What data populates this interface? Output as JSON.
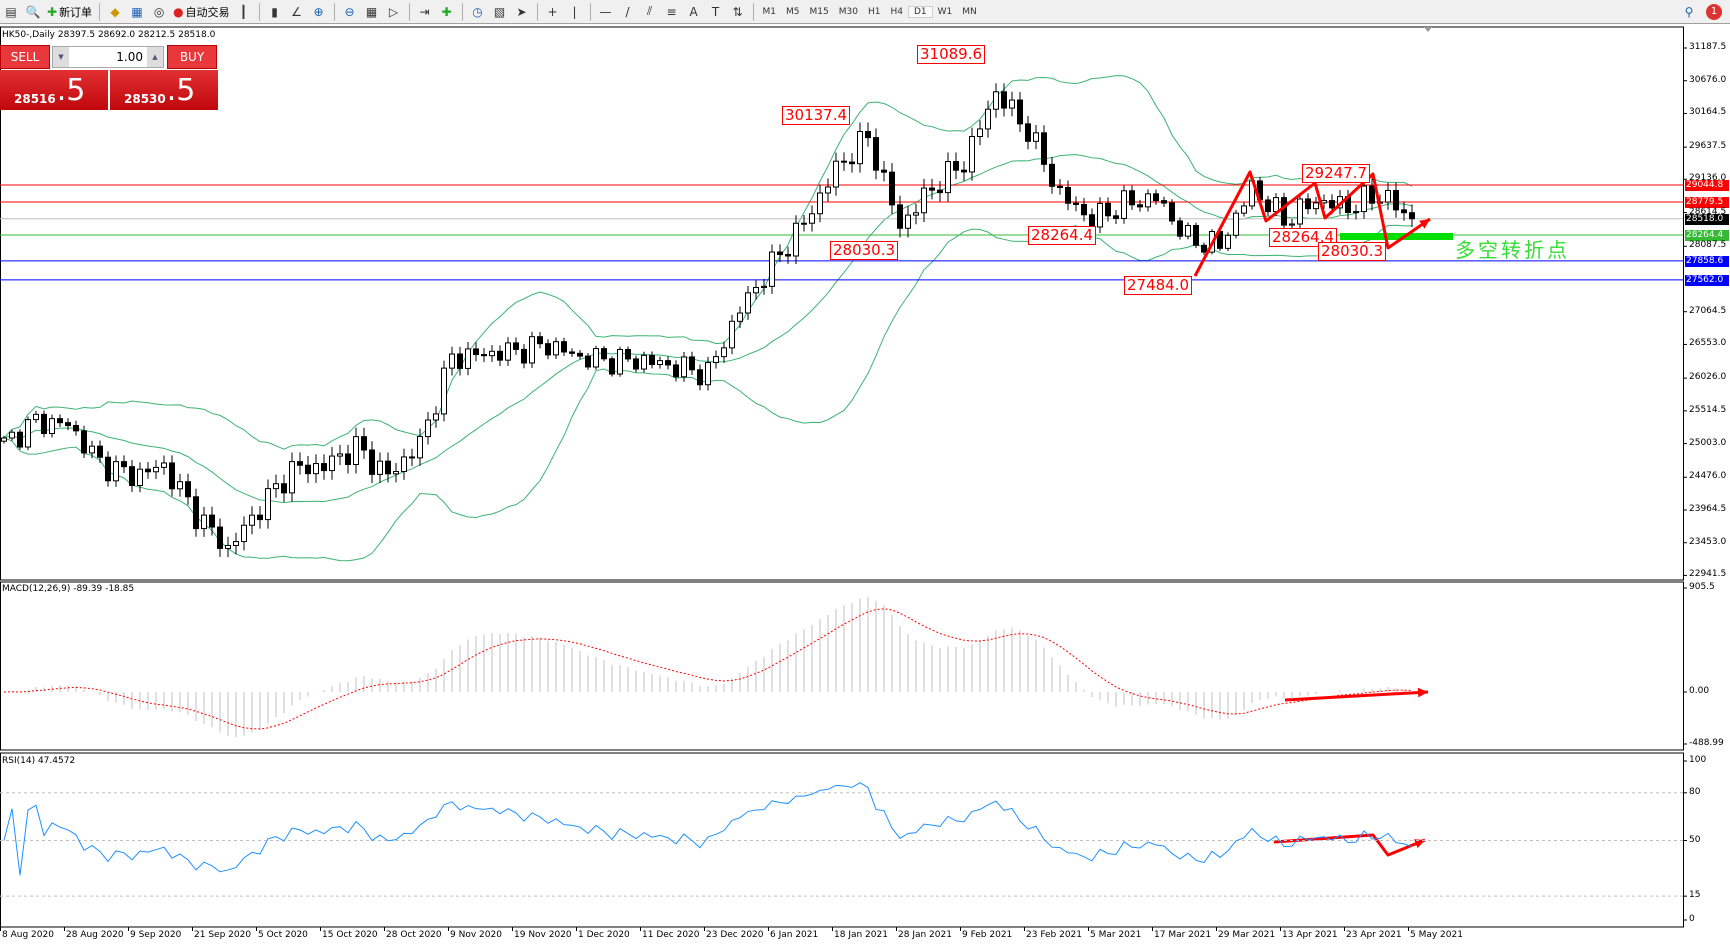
{
  "toolbar": {
    "new_order": "新订单",
    "auto_trading": "自动交易",
    "icons": [
      "new-chart-icon",
      "profiles-icon",
      "new-order-icon",
      "metaeditor-icon",
      "navigator-icon",
      "signals-icon",
      "auto-trading-icon",
      "bar-chart-icon",
      "candlestick-icon",
      "line-chart-icon",
      "zoom-in-icon",
      "zoom-out-icon",
      "tile-windows-icon",
      "auto-scroll-icon",
      "chart-shift-icon",
      "indicators-icon",
      "periods-icon",
      "templates-icon",
      "cursor-icon",
      "crosshair-icon",
      "vertical-line-icon",
      "horizontal-line-icon",
      "trendline-icon",
      "equidistant-channel-icon",
      "fibonacci-icon",
      "text-icon",
      "text-label-icon",
      "arrows-icon"
    ],
    "timeframes": [
      "M1",
      "M5",
      "M15",
      "M30",
      "H1",
      "H4",
      "D1",
      "W1",
      "MN"
    ],
    "active_timeframe": "D1",
    "notification_count": "1"
  },
  "chart": {
    "header": "HK50-,Daily  28397.5 28692.0 28212.5 28518.0",
    "trade_panel": {
      "sell": "SELL",
      "buy": "BUY",
      "lot": "1.00",
      "bid_main": "28516",
      "bid_frac": ".5",
      "ask_main": "28530",
      "ask_frac": ".5"
    },
    "price_axis": [
      "31187.5",
      "30676.0",
      "30164.5",
      "29637.5",
      "29136.0",
      "28614.5",
      "28087.5",
      "27064.5",
      "26553.0",
      "26026.0",
      "25514.5",
      "25003.0",
      "24476.0",
      "23964.5",
      "23453.0",
      "22941.5"
    ],
    "levels": [
      {
        "price": "29044.8",
        "color": "#ff0000"
      },
      {
        "price": "28779.5",
        "color": "#ff0000"
      },
      {
        "price": "28518.0",
        "color": "#000000",
        "line": "#c0c0c0"
      },
      {
        "price": "28264.4",
        "color": "#33bb33"
      },
      {
        "price": "27858.6",
        "color": "#0000ff"
      },
      {
        "price": "27562.0",
        "color": "#0000ff"
      }
    ],
    "annotations": [
      "31089.6",
      "30137.4",
      "28030.3",
      "28264.4",
      "27484.0",
      "29247.7",
      "28264.4",
      "28030.3"
    ],
    "zone_text": "多空转折点",
    "dates": [
      "8 Aug 2020",
      "28 Aug 2020",
      "9 Sep 2020",
      "21 Sep 2020",
      "5 Oct 2020",
      "15 Oct 2020",
      "28 Oct 2020",
      "9 Nov 2020",
      "19 Nov 2020",
      "1 Dec 2020",
      "11 Dec 2020",
      "23 Dec 2020",
      "6 Jan 2021",
      "18 Jan 2021",
      "28 Jan 2021",
      "9 Feb 2021",
      "23 Feb 2021",
      "5 Mar 2021",
      "17 Mar 2021",
      "29 Mar 2021",
      "13 Apr 2021",
      "23 Apr 2021",
      "5 May 2021"
    ]
  },
  "macd": {
    "label": "MACD(12,26,9) -89.39 -18.85",
    "axis": [
      "905.5",
      "0.00",
      "-488.99"
    ]
  },
  "rsi": {
    "label": "RSI(14) 47.4572",
    "axis": [
      "100",
      "80",
      "50",
      "15",
      "0"
    ]
  },
  "chart_data": {
    "type": "candlestick",
    "symbol": "HK50-",
    "timeframe": "Daily",
    "last_ohlc": {
      "open": 28397.5,
      "high": 28692.0,
      "low": 28212.5,
      "close": 28518.0
    },
    "approx_closes_every_4_bars": [
      25000,
      25350,
      25300,
      24700,
      24500,
      24650,
      23900,
      23350,
      24000,
      24600,
      24650,
      24950,
      24500,
      25000,
      26350,
      26400,
      26450,
      26550,
      26350,
      26300,
      26300,
      26200,
      26100,
      27100,
      27800,
      28450,
      29300,
      29800,
      28400,
      29000,
      29400,
      30500,
      29900,
      28900,
      28500,
      28750,
      28850,
      28200,
      28100,
      29000,
      28500,
      28800,
      28700,
      28900,
      28518
    ],
    "ylim": [
      22941.5,
      31187.5
    ],
    "indicators": [
      "Bollinger Bands(20,2)",
      "MACD(12,26,9)",
      "RSI(14)"
    ]
  }
}
